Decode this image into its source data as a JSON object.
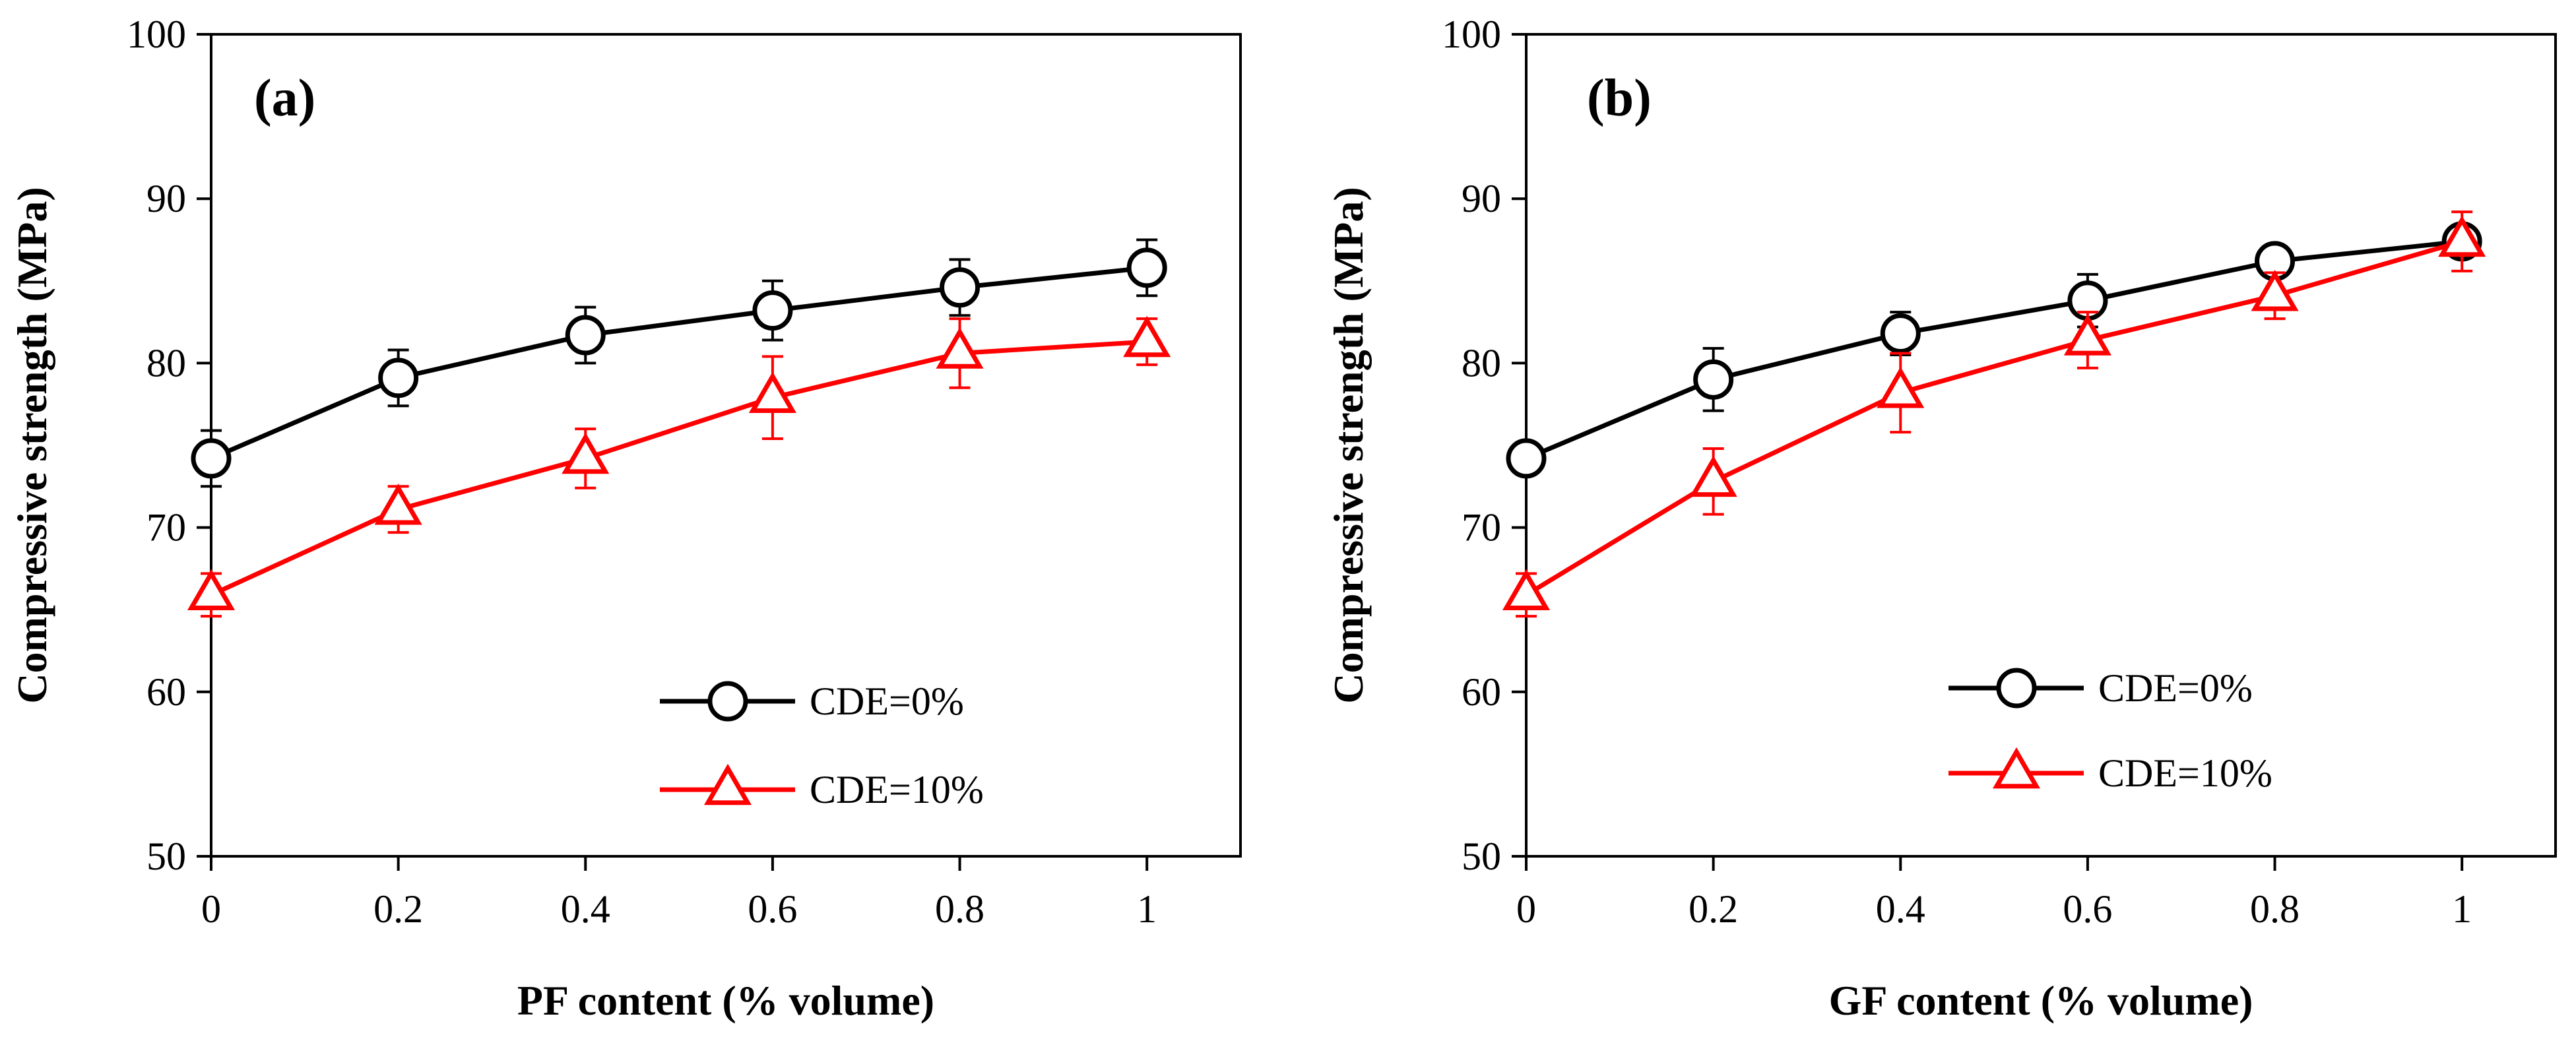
{
  "chart_data": [
    {
      "type": "line",
      "panel_label": "(a)",
      "xlabel": "PF content (% volume)",
      "ylabel": "Compressive strength (MPa)",
      "xlim": [
        0,
        1.1
      ],
      "ylim": [
        50,
        100
      ],
      "x_ticks": [
        0,
        0.2,
        0.4,
        0.6,
        0.8,
        1
      ],
      "x_tick_labels": [
        "0",
        "0.2",
        "0.4",
        "0.6",
        "0.8",
        "1"
      ],
      "y_ticks": [
        50,
        60,
        70,
        80,
        90,
        100
      ],
      "y_tick_labels": [
        "50",
        "60",
        "70",
        "80",
        "90",
        "100"
      ],
      "legend_position": "bottom-right",
      "grid": false,
      "x": [
        0,
        0.2,
        0.4,
        0.6,
        0.8,
        1
      ],
      "series": [
        {
          "name": "CDE=0%",
          "color": "#000000",
          "marker": "circle",
          "values": [
            74.2,
            79.1,
            81.7,
            83.2,
            84.6,
            85.8
          ],
          "error": [
            1.7,
            1.7,
            1.7,
            1.8,
            1.7,
            1.7
          ]
        },
        {
          "name": "CDE=10%",
          "color": "#ff0000",
          "marker": "triangle",
          "values": [
            65.9,
            71.1,
            74.2,
            77.9,
            80.6,
            81.3
          ],
          "error": [
            1.3,
            1.4,
            1.8,
            2.5,
            2.1,
            1.4
          ]
        }
      ]
    },
    {
      "type": "line",
      "panel_label": "(b)",
      "xlabel": "GF content (% volume)",
      "ylabel": "Compressive strength (MPa)",
      "xlim": [
        0,
        1.1
      ],
      "ylim": [
        50,
        100
      ],
      "x_ticks": [
        0,
        0.2,
        0.4,
        0.6,
        0.8,
        1
      ],
      "x_tick_labels": [
        "0",
        "0.2",
        "0.4",
        "0.6",
        "0.8",
        "1"
      ],
      "y_ticks": [
        50,
        60,
        70,
        80,
        90,
        100
      ],
      "y_tick_labels": [
        "50",
        "60",
        "70",
        "80",
        "90",
        "100"
      ],
      "legend_position": "bottom-right",
      "grid": false,
      "x": [
        0,
        0.2,
        0.4,
        0.6,
        0.8,
        1
      ],
      "series": [
        {
          "name": "CDE=0%",
          "color": "#000000",
          "marker": "circle",
          "values": [
            74.2,
            79.0,
            81.8,
            83.8,
            86.2,
            87.4
          ],
          "error": [
            0.0,
            1.9,
            1.3,
            1.6,
            0.9,
            0.8
          ]
        },
        {
          "name": "CDE=10%",
          "color": "#ff0000",
          "marker": "triangle",
          "values": [
            65.9,
            72.8,
            78.2,
            81.4,
            84.1,
            87.4
          ],
          "error": [
            1.3,
            2.0,
            2.4,
            1.7,
            1.4,
            1.8
          ]
        }
      ]
    }
  ]
}
